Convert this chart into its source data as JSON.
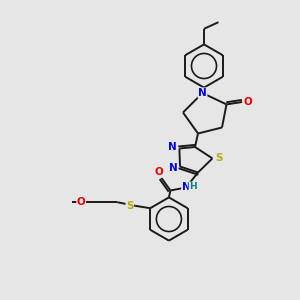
{
  "background_color": "#e6e6e6",
  "bond_color": "#1a1a1a",
  "atom_colors": {
    "N": "#0000ee",
    "O": "#ee0000",
    "S": "#bbaa00",
    "C": "#1a1a1a",
    "H": "#008888"
  },
  "figsize": [
    3.0,
    3.0
  ],
  "dpi": 100,
  "bond_lw": 1.4,
  "font_size": 7.5
}
